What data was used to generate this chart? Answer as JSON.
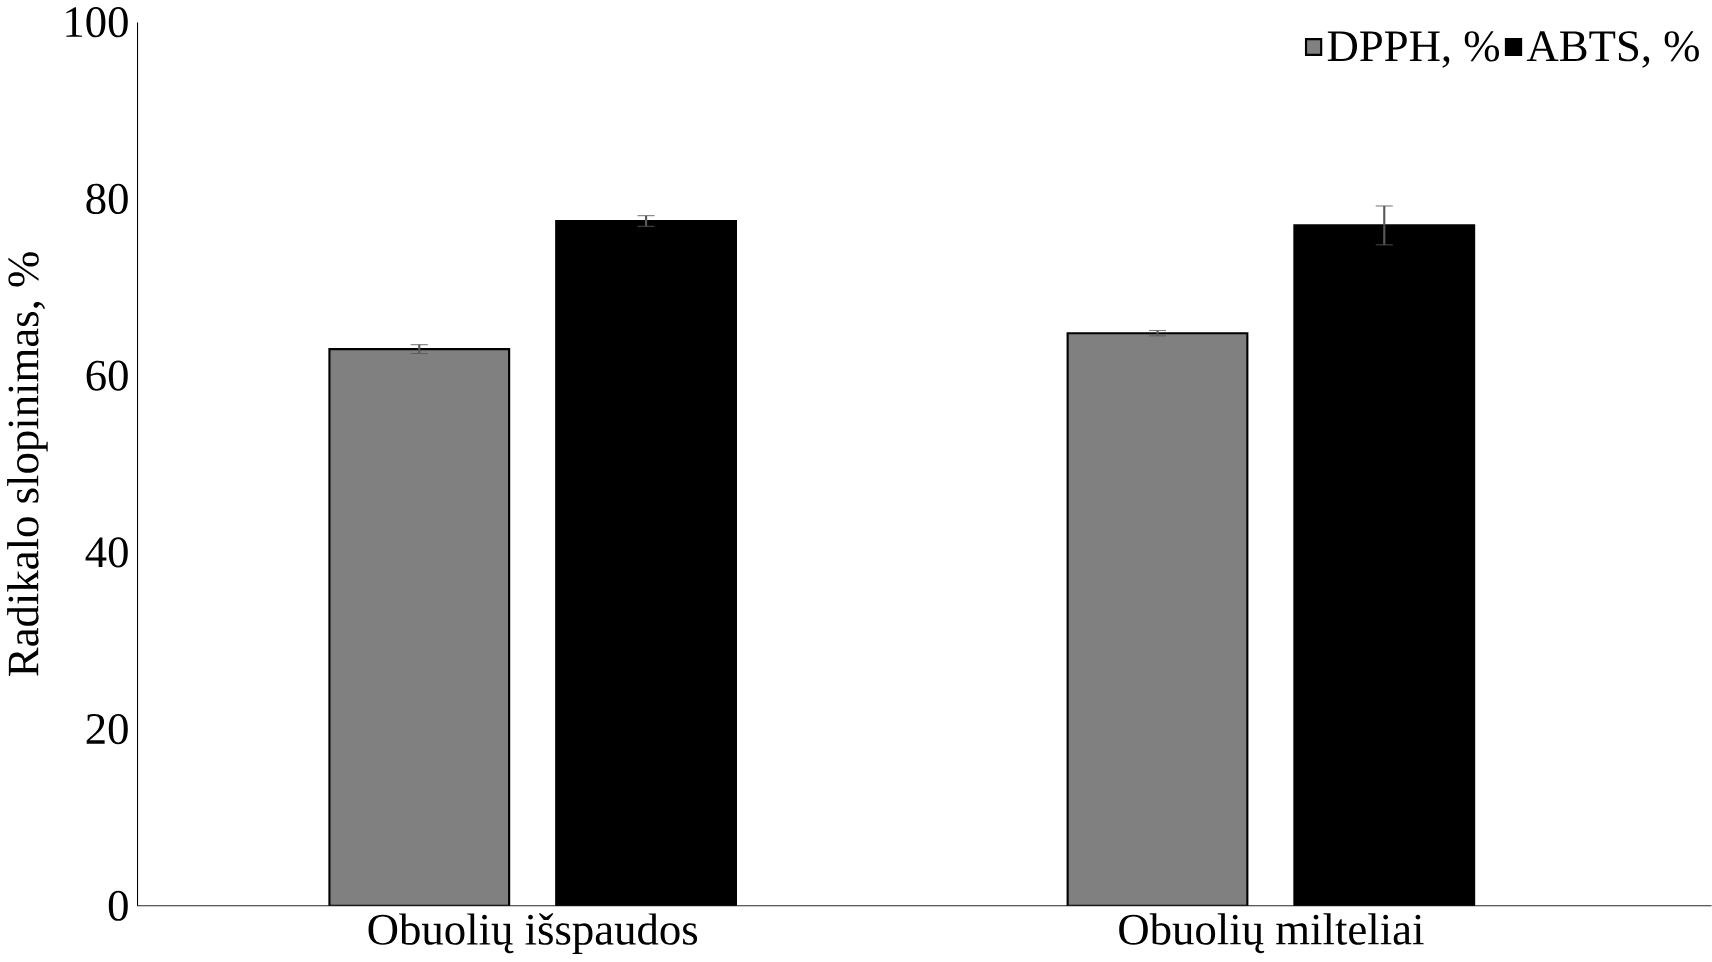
{
  "chart_data": {
    "type": "bar",
    "ylabel": "Radikalo slopinimas, %",
    "categories": [
      "Obuolių išspaudos",
      "Obuolių milteliai"
    ],
    "series": [
      {
        "name": "DPPH, %",
        "color": "#808080",
        "values": [
          63.0,
          64.8
        ],
        "errors": [
          0.5,
          0.3
        ]
      },
      {
        "name": "ABTS, %",
        "color": "#000000",
        "values": [
          77.5,
          77.0
        ],
        "errors": [
          0.6,
          2.2
        ]
      }
    ],
    "ylim": [
      0,
      100
    ],
    "yticks": [
      0,
      20,
      40,
      60,
      80,
      100
    ],
    "grid": false,
    "legend": "top right"
  }
}
